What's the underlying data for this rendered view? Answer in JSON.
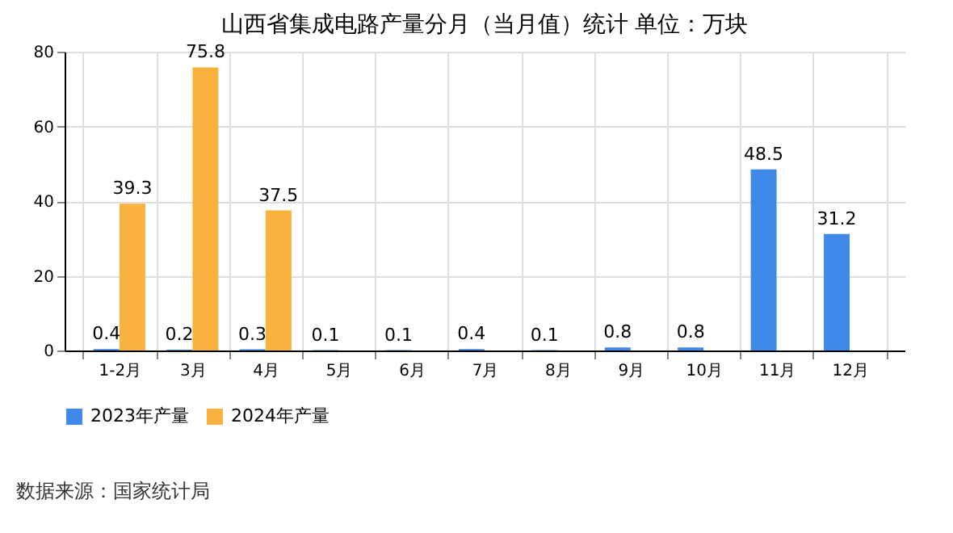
{
  "chart_data": {
    "type": "bar",
    "title": "山西省集成电路产量分月（当月值）统计  单位：万块",
    "categories": [
      "1-2月",
      "3月",
      "4月",
      "5月",
      "6月",
      "7月",
      "8月",
      "9月",
      "10月",
      "11月",
      "12月"
    ],
    "series": [
      {
        "name": "2023年产量",
        "color": "#4189e8",
        "values": [
          0.4,
          0.2,
          0.3,
          0.1,
          0.1,
          0.4,
          0.1,
          0.8,
          0.8,
          48.5,
          31.2
        ]
      },
      {
        "name": "2024年产量",
        "color": "#fab23e",
        "values": [
          39.3,
          75.8,
          37.5,
          null,
          null,
          null,
          null,
          null,
          null,
          null,
          null
        ]
      }
    ],
    "ylim": [
      0,
      80
    ],
    "yticks": [
      0,
      20,
      40,
      60,
      80
    ],
    "grid": true,
    "legend": "bottom",
    "data_labels": true,
    "annotations": [
      "数据来源：国家统计局"
    ]
  }
}
